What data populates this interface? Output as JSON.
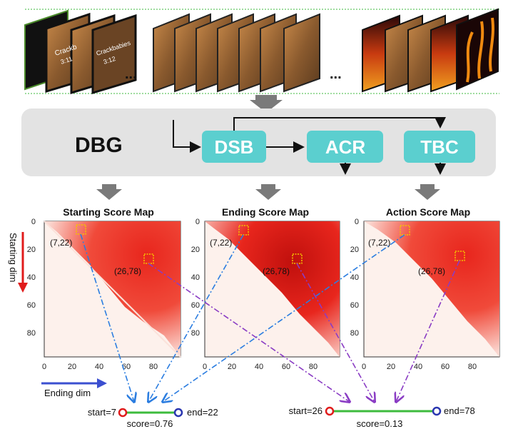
{
  "dbg": {
    "title": "DBG",
    "modules": {
      "dsb": "DSB",
      "acr": "ACR",
      "tbc": "TBC"
    }
  },
  "frame_groups": {
    "ellipsis": "..."
  },
  "frame_captions": {
    "clip1_a": "Crackb",
    "clip1_a2": "3:11",
    "clip1_b": "Crackbabies",
    "clip1_b2": "3:12"
  },
  "maps": [
    {
      "title": "Starting Score Map"
    },
    {
      "title": "Ending Score Map"
    },
    {
      "title": "Action Score Map"
    }
  ],
  "axis_ticks": {
    "y": [
      "0",
      "20",
      "40",
      "60",
      "80"
    ],
    "x": [
      "0",
      "20",
      "40",
      "60",
      "80"
    ]
  },
  "points": {
    "p1": "(7,22)",
    "p2": "(26,78)"
  },
  "axes_labels": {
    "starting_dim": "Starting dim",
    "ending_dim": "Ending dim"
  },
  "proposals": [
    {
      "start": "start=7",
      "end": "end=22",
      "score": "score=0.76"
    },
    {
      "start": "start=26",
      "end": "end=78",
      "score": "score=0.13"
    }
  ],
  "colors": {
    "module_box": "#5bcfcf",
    "dbg_panel": "#e3e3e3",
    "arrow_gray": "#7a7a7a",
    "heat_red": "#e8261d",
    "blue_dash": "#2b7de0",
    "purple_dash": "#8a3cc4",
    "segment_green": "#3dbb3d",
    "start_circle": "#e01b1b",
    "end_circle": "#2a36b0",
    "axis_red": "#e01b1b",
    "axis_blue": "#3b4fd0"
  }
}
